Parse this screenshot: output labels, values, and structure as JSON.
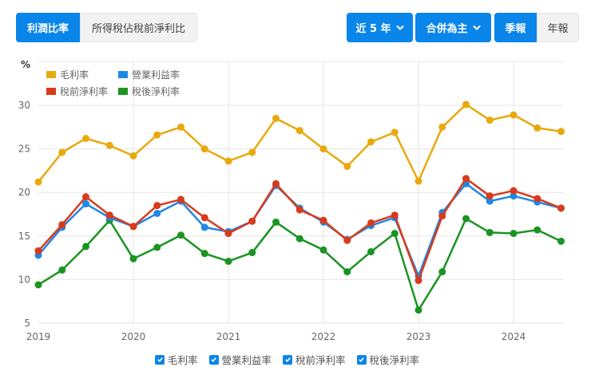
{
  "tabs_left": [
    {
      "label": "利潤比率",
      "active": true
    },
    {
      "label": "所得稅佔稅前淨利比",
      "active": false
    }
  ],
  "dropdowns": {
    "period": {
      "label": "近 5 年",
      "icon": "chevron-down-icon"
    },
    "consolidation": {
      "label": "合併為主",
      "icon": "chevron-down-icon"
    }
  },
  "tabs_freq": [
    {
      "label": "季報",
      "active": true
    },
    {
      "label": "年報",
      "active": false
    }
  ],
  "colors": {
    "accent": "#0a85e9",
    "gross": "#e8a90c",
    "operating": "#1e88e5",
    "pretax": "#d93a1b",
    "aftertax": "#1a9422",
    "grid": "#e6e6e6"
  },
  "toggles": [
    {
      "label": "毛利率",
      "checked": true
    },
    {
      "label": "營業利益率",
      "checked": true
    },
    {
      "label": "稅前淨利率",
      "checked": true
    },
    {
      "label": "稅後淨利率",
      "checked": true
    }
  ],
  "chart_data": {
    "type": "line",
    "title": "",
    "xlabel": "",
    "ylabel": "%",
    "ylim": [
      5,
      30
    ],
    "yticks": [
      5,
      10,
      15,
      20,
      25,
      30
    ],
    "xticks": [
      "2019",
      "2020",
      "2021",
      "2022",
      "2023",
      "2024"
    ],
    "grid": true,
    "legend_position": "top-left",
    "x": [
      "2019Q1",
      "2019Q2",
      "2019Q3",
      "2019Q4",
      "2020Q1",
      "2020Q2",
      "2020Q3",
      "2020Q4",
      "2021Q1",
      "2021Q2",
      "2021Q3",
      "2021Q4",
      "2022Q1",
      "2022Q2",
      "2022Q3",
      "2022Q4",
      "2023Q1",
      "2023Q2",
      "2023Q3",
      "2023Q4",
      "2024Q1",
      "2024Q2",
      "2024Q3"
    ],
    "series": [
      {
        "name": "毛利率",
        "color": "#e8a90c",
        "values": [
          21.2,
          24.6,
          26.2,
          25.4,
          24.2,
          26.6,
          27.5,
          25.0,
          23.6,
          24.6,
          28.5,
          27.1,
          25.0,
          23.0,
          25.8,
          26.9,
          21.3,
          27.5,
          30.1,
          28.3,
          28.9,
          27.4,
          27.0
        ]
      },
      {
        "name": "營業利益率",
        "color": "#1e88e5",
        "values": [
          12.8,
          16.0,
          18.7,
          17.1,
          16.1,
          17.6,
          19.0,
          16.0,
          15.5,
          16.7,
          20.8,
          18.2,
          16.6,
          14.6,
          16.2,
          17.1,
          10.4,
          17.7,
          21.0,
          19.0,
          19.6,
          18.9,
          18.2
        ]
      },
      {
        "name": "稅前淨利率",
        "color": "#d93a1b",
        "values": [
          13.3,
          16.3,
          19.5,
          17.4,
          16.1,
          18.5,
          19.2,
          17.1,
          15.3,
          16.7,
          21.0,
          18.0,
          16.8,
          14.5,
          16.5,
          17.4,
          9.9,
          17.3,
          21.6,
          19.6,
          20.2,
          19.3,
          18.2
        ]
      },
      {
        "name": "稅後淨利率",
        "color": "#1a9422",
        "values": [
          9.4,
          11.1,
          13.8,
          16.8,
          12.4,
          13.7,
          15.1,
          13.0,
          12.1,
          13.1,
          16.6,
          14.7,
          13.4,
          10.9,
          13.2,
          15.3,
          6.5,
          10.9,
          17.0,
          15.4,
          15.3,
          15.7,
          14.4
        ]
      }
    ]
  }
}
